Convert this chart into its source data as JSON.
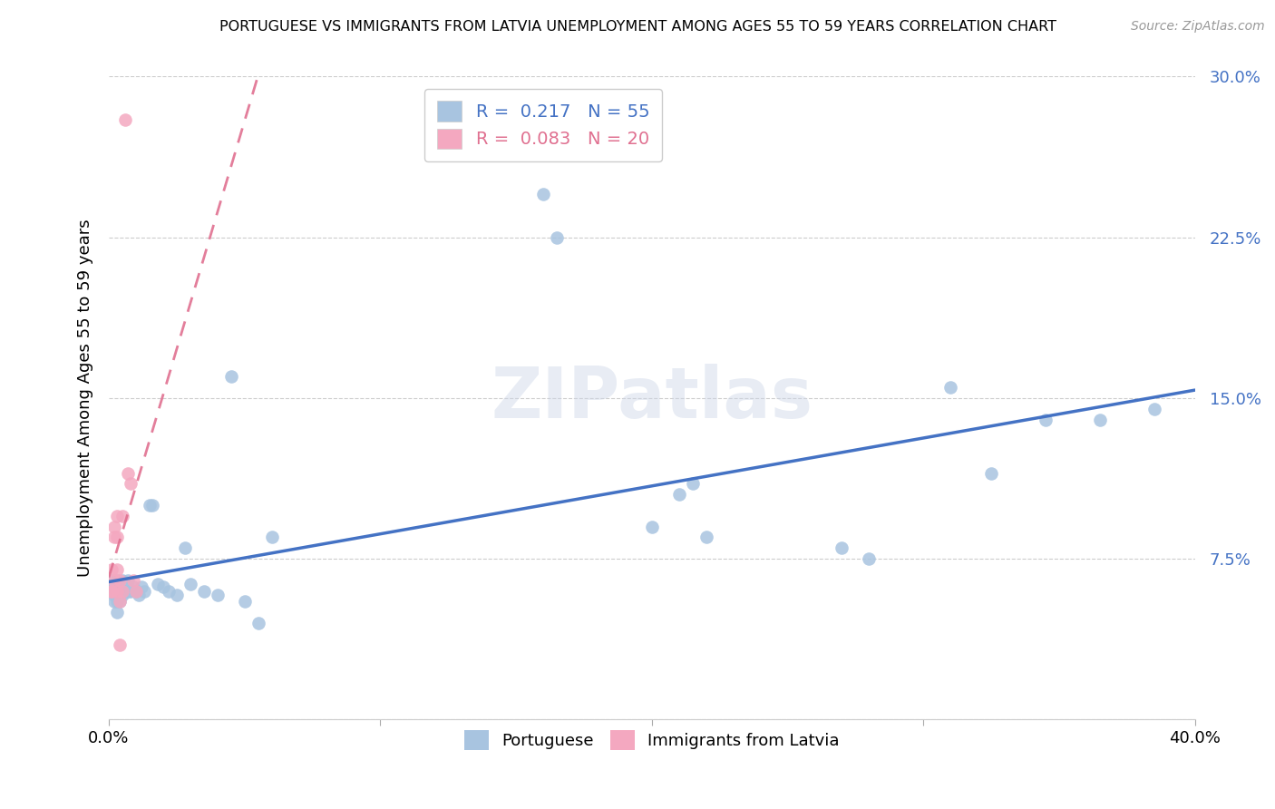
{
  "title": "PORTUGUESE VS IMMIGRANTS FROM LATVIA UNEMPLOYMENT AMONG AGES 55 TO 59 YEARS CORRELATION CHART",
  "source": "Source: ZipAtlas.com",
  "ylabel": "Unemployment Among Ages 55 to 59 years",
  "xlim": [
    0.0,
    0.4
  ],
  "ylim": [
    0.0,
    0.3
  ],
  "xticks": [
    0.0,
    0.1,
    0.2,
    0.3,
    0.4
  ],
  "yticks": [
    0.0,
    0.075,
    0.15,
    0.225,
    0.3
  ],
  "xtick_labels": [
    "0.0%",
    "",
    "",
    "",
    "40.0%"
  ],
  "ytick_labels": [
    "",
    "7.5%",
    "15.0%",
    "22.5%",
    "30.0%"
  ],
  "background_color": "#ffffff",
  "watermark": "ZIPatlas",
  "portuguese_color": "#a8c4e0",
  "latvia_color": "#f4a8c0",
  "portuguese_line_color": "#4472c4",
  "latvia_line_color": "#e07090",
  "portuguese_R": 0.217,
  "latvia_R": 0.083,
  "portuguese_N": 55,
  "latvia_N": 20,
  "portuguese_x": [
    0.001,
    0.001,
    0.002,
    0.002,
    0.002,
    0.002,
    0.003,
    0.003,
    0.003,
    0.003,
    0.003,
    0.004,
    0.004,
    0.004,
    0.004,
    0.005,
    0.005,
    0.005,
    0.006,
    0.006,
    0.007,
    0.007,
    0.008,
    0.009,
    0.01,
    0.011,
    0.012,
    0.013,
    0.015,
    0.016,
    0.018,
    0.02,
    0.022,
    0.025,
    0.028,
    0.03,
    0.035,
    0.04,
    0.045,
    0.05,
    0.055,
    0.06,
    0.16,
    0.165,
    0.2,
    0.21,
    0.215,
    0.22,
    0.27,
    0.28,
    0.31,
    0.325,
    0.345,
    0.365,
    0.385
  ],
  "portuguese_y": [
    0.06,
    0.065,
    0.055,
    0.06,
    0.062,
    0.058,
    0.05,
    0.055,
    0.06,
    0.065,
    0.063,
    0.055,
    0.06,
    0.062,
    0.058,
    0.06,
    0.065,
    0.058,
    0.06,
    0.063,
    0.06,
    0.065,
    0.06,
    0.062,
    0.06,
    0.058,
    0.062,
    0.06,
    0.1,
    0.1,
    0.063,
    0.062,
    0.06,
    0.058,
    0.08,
    0.063,
    0.06,
    0.058,
    0.16,
    0.055,
    0.045,
    0.085,
    0.245,
    0.225,
    0.09,
    0.105,
    0.11,
    0.085,
    0.08,
    0.075,
    0.155,
    0.115,
    0.14,
    0.14,
    0.145
  ],
  "latvia_x": [
    0.001,
    0.001,
    0.001,
    0.002,
    0.002,
    0.002,
    0.003,
    0.003,
    0.003,
    0.003,
    0.004,
    0.004,
    0.004,
    0.005,
    0.005,
    0.006,
    0.007,
    0.008,
    0.009,
    0.01
  ],
  "latvia_y": [
    0.06,
    0.07,
    0.06,
    0.09,
    0.085,
    0.065,
    0.095,
    0.085,
    0.06,
    0.07,
    0.065,
    0.055,
    0.035,
    0.095,
    0.06,
    0.28,
    0.115,
    0.11,
    0.065,
    0.06
  ]
}
